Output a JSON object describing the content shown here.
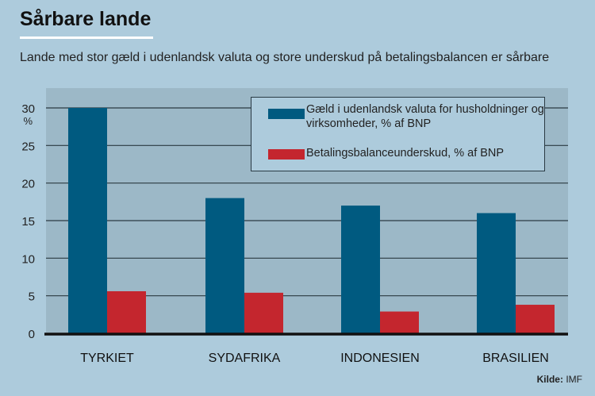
{
  "title": "Sårbare lande",
  "subtitle": "Lande med stor gæld i udenlandsk valuta og store underskud på betalingsbalancen er sårbare",
  "source_label": "Kilde:",
  "source_value": "IMF",
  "chart_data": {
    "type": "bar",
    "categories": [
      "TYRKIET",
      "SYDAFRIKA",
      "INDONESIEN",
      "BRASILIEN"
    ],
    "series": [
      {
        "name": "Gæld i udenlandsk valuta for husholdninger og virksomheder, % af BNP",
        "color": "#005a80",
        "values": [
          30,
          18,
          17,
          16
        ]
      },
      {
        "name": "Betalingsbalanceunderskud, % af BNP",
        "color": "#c4262e",
        "values": [
          5.6,
          5.4,
          2.9,
          3.8
        ]
      }
    ],
    "yticks": [
      "0",
      "5",
      "10",
      "15",
      "20",
      "25",
      "30"
    ],
    "ylabel": "%",
    "ylim": [
      0,
      30
    ],
    "grid": true,
    "legend_position": "top-right"
  }
}
